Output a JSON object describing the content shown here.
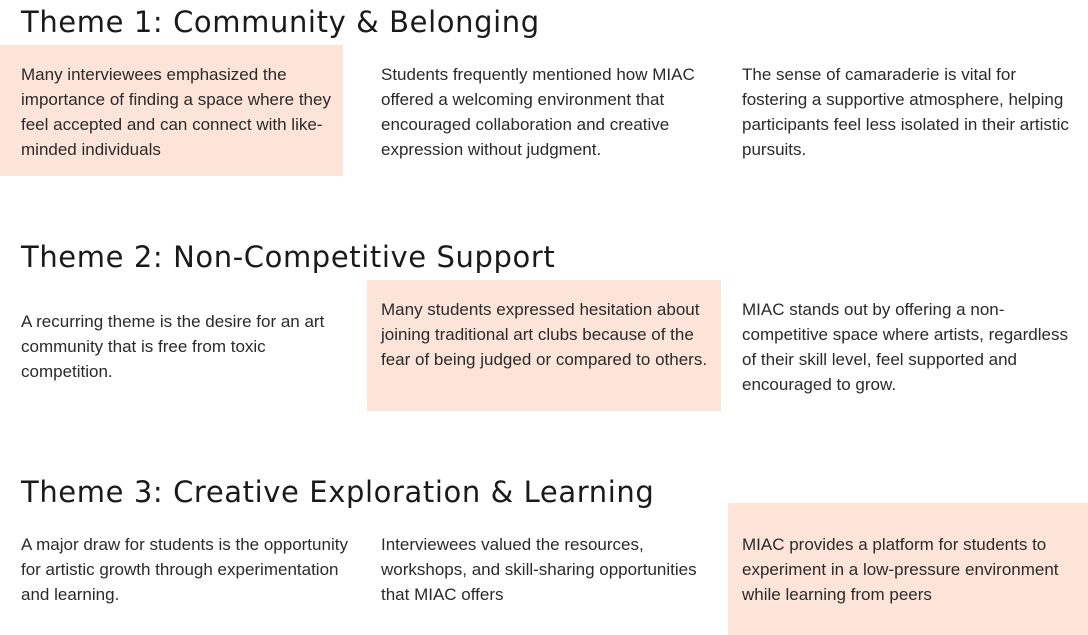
{
  "themes": [
    {
      "title": "Theme 1: Community & Belonging",
      "cards": [
        {
          "text": "Many interviewees emphasized the importance of finding a space where they feel accepted and can connect with like-minded individuals",
          "highlighted": true
        },
        {
          "text": "Students frequently mentioned how MIAC offered a welcoming environment that encouraged collaboration and creative expression without judgment.",
          "highlighted": false
        },
        {
          "text": "The sense of camaraderie is vital for fostering a supportive atmosphere, helping participants feel less isolated in their artistic pursuits.",
          "highlighted": false
        }
      ]
    },
    {
      "title": "Theme 2: Non-Competitive Support",
      "cards": [
        {
          "text": "A recurring theme is the desire for an art community that is free from toxic competition.",
          "highlighted": false
        },
        {
          "text": "Many students expressed hesitation about joining traditional art clubs because of the fear of being judged or compared to others.",
          "highlighted": true
        },
        {
          "text": "MIAC stands out by offering a non-competitive space where artists, regardless of their skill level, feel supported and encouraged to grow.",
          "highlighted": false
        }
      ]
    },
    {
      "title": "Theme 3: Creative Exploration & Learning",
      "cards": [
        {
          "text": "A major draw for students is the opportunity for artistic growth through experimentation and learning.",
          "highlighted": false
        },
        {
          "text": "Interviewees valued the resources, workshops, and skill-sharing opportunities that MIAC offers",
          "highlighted": false
        },
        {
          "text": "MIAC provides a platform for students to experiment in a low-pressure environment while learning from peers",
          "highlighted": true
        }
      ]
    }
  ],
  "colors": {
    "highlight": "#fde4d9",
    "text": "#2a2a2a",
    "heading": "#1a1a1a"
  }
}
